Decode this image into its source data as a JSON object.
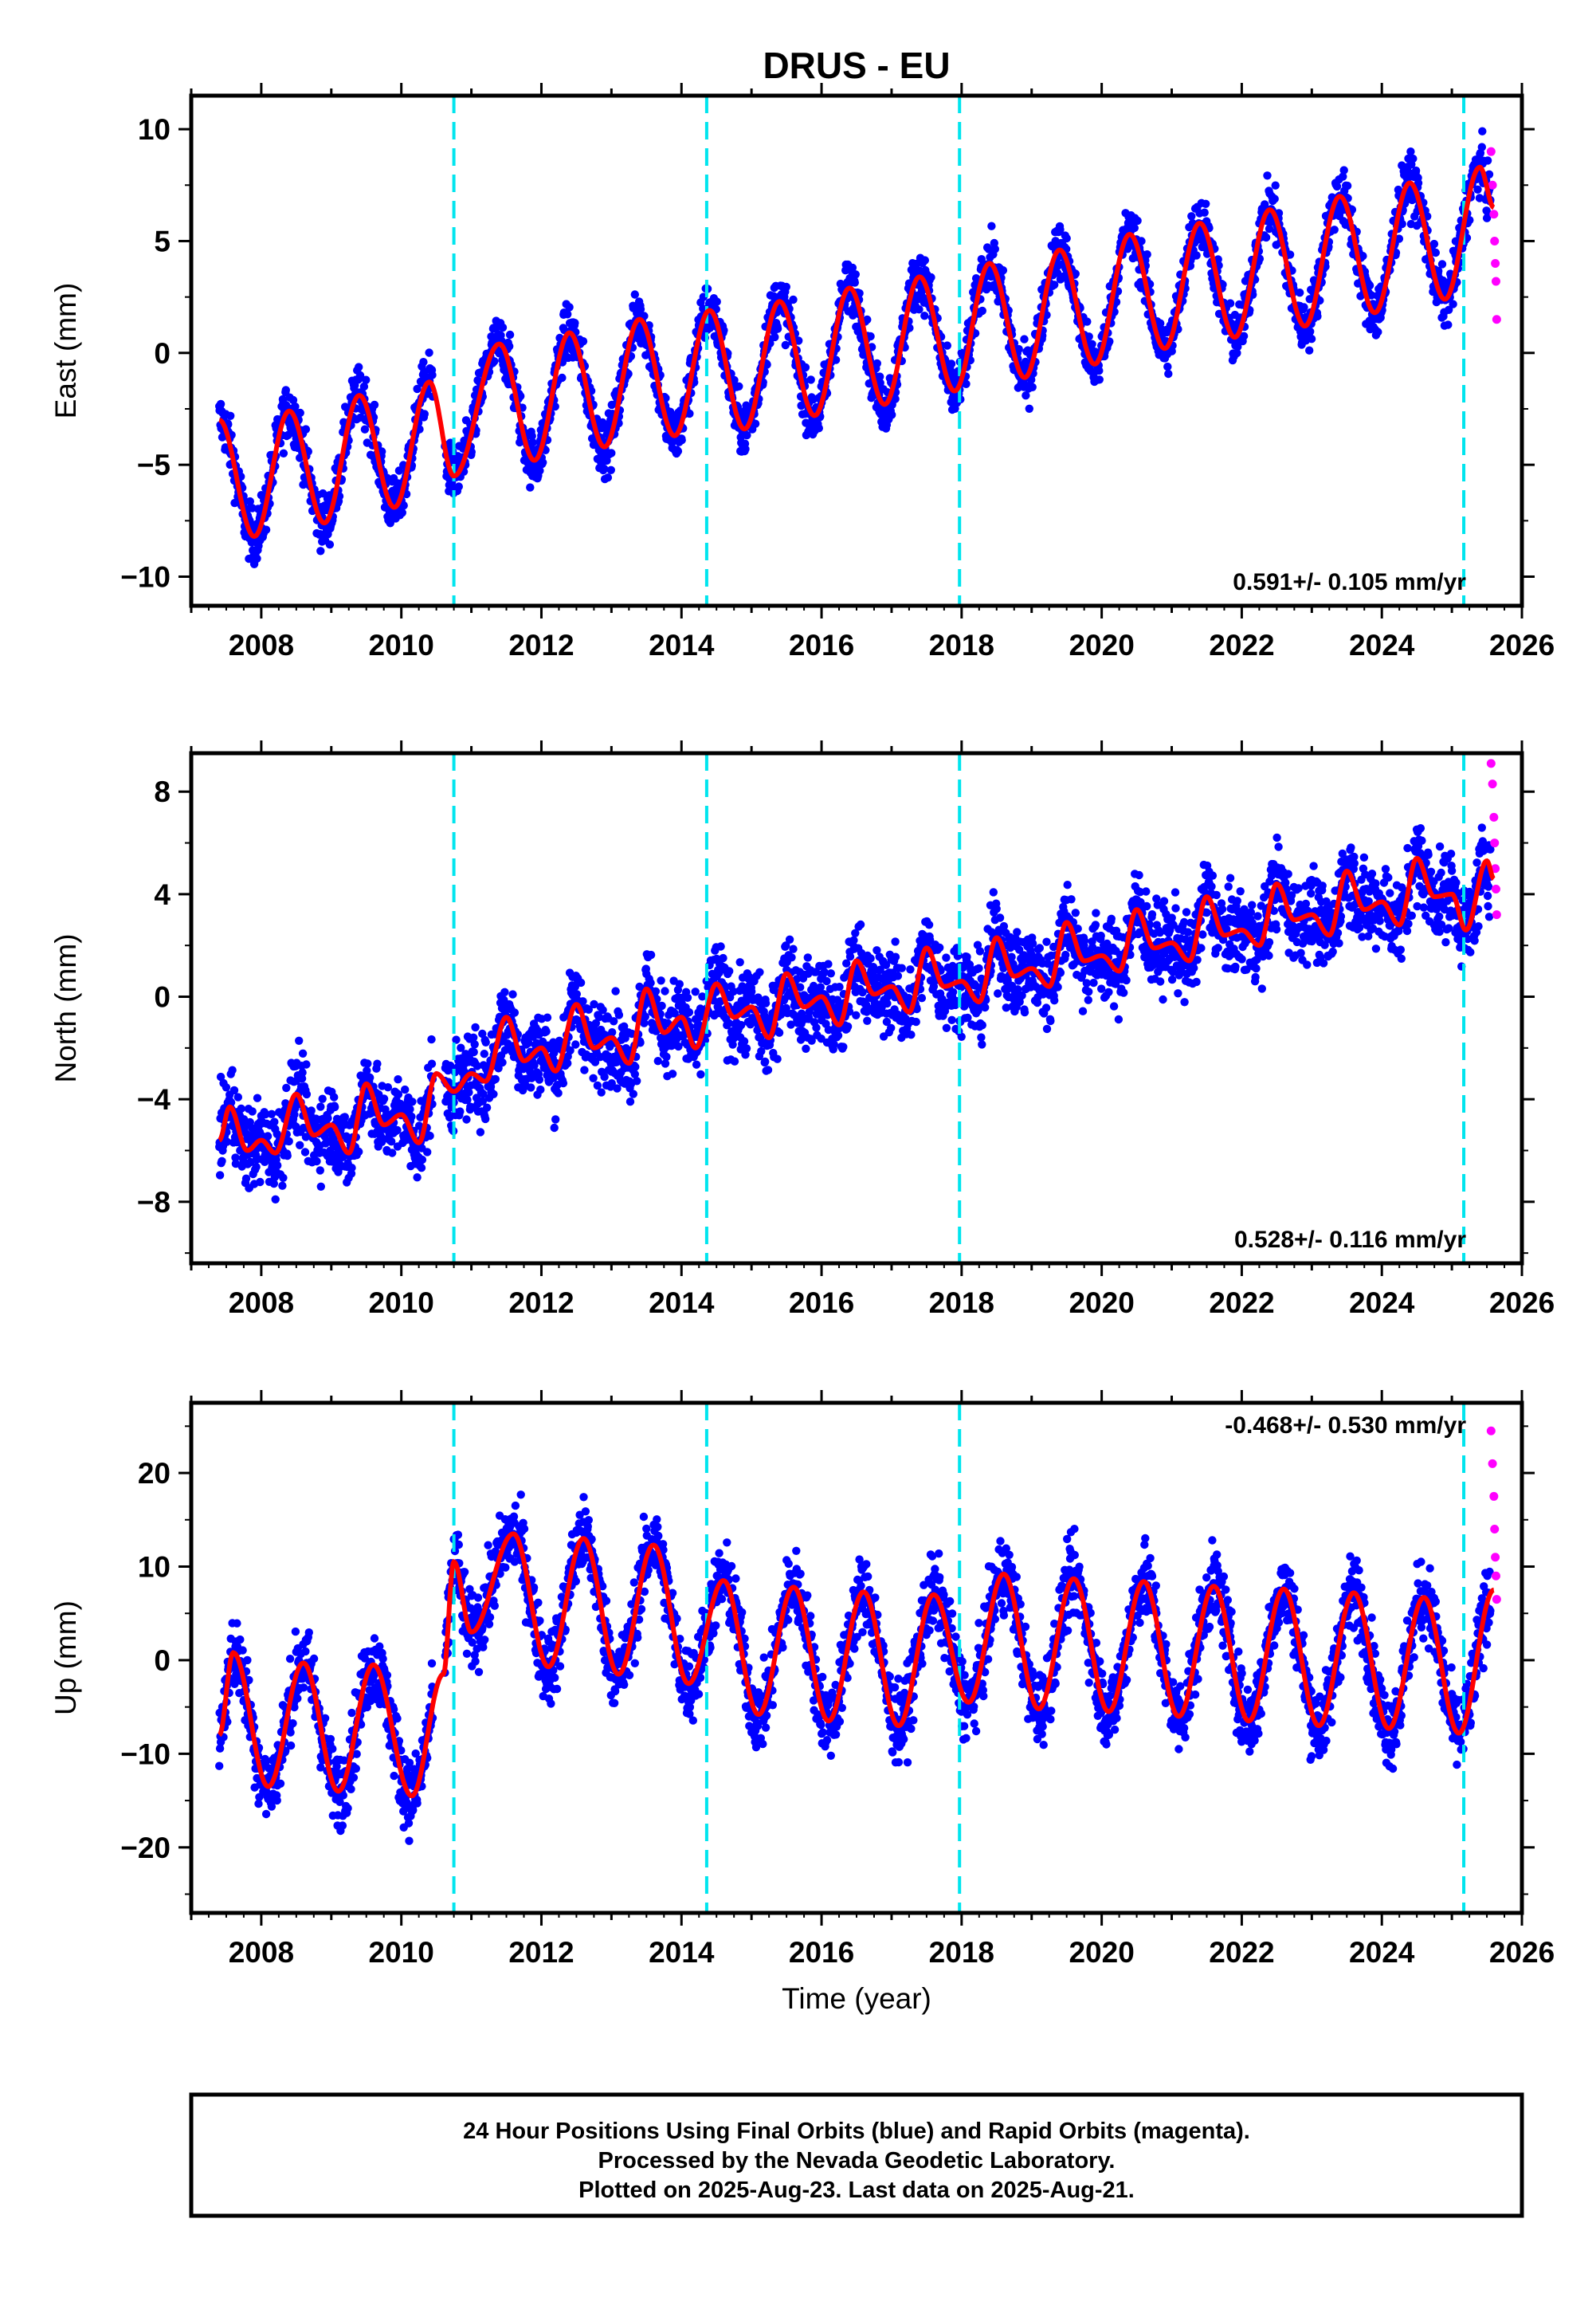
{
  "title": "DRUS - EU",
  "footer": {
    "line1": "24 Hour Positions Using Final Orbits (blue) and Rapid Orbits (magenta).",
    "line2": "Processed by the Nevada Geodetic Laboratory.",
    "line3": "Plotted on 2025-Aug-23. Last data on 2025-Aug-21."
  },
  "colors": {
    "final": "#0000ff",
    "rapid": "#ff00ff",
    "model": "#ff0000",
    "offset": "#00e5ee"
  },
  "chart_data": [
    {
      "type": "scatter",
      "ylabel": "East (mm)",
      "xlabel": "",
      "xlim": [
        2007.0,
        2026.0
      ],
      "ylim": [
        -11.3,
        11.5
      ],
      "xticks": [
        2008,
        2010,
        2012,
        2014,
        2016,
        2018,
        2020,
        2022,
        2024,
        2026
      ],
      "yticks": [
        -10,
        -5,
        0,
        5,
        10
      ],
      "rate_label": "0.591+/- 0.105 mm/yr",
      "offset_epochs": [
        2010.75,
        2014.36,
        2017.97,
        2025.17
      ],
      "model": {
        "x": [
          2007.4,
          2007.9,
          2008.4,
          2008.9,
          2009.4,
          2009.9,
          2010.4,
          2010.75,
          2011.4,
          2011.9,
          2012.4,
          2012.9,
          2013.4,
          2013.9,
          2014.4,
          2014.9,
          2015.4,
          2015.9,
          2016.4,
          2016.9,
          2017.4,
          2017.9,
          2018.4,
          2018.9,
          2019.4,
          2019.9,
          2020.4,
          2020.9,
          2021.4,
          2021.9,
          2022.4,
          2022.9,
          2023.4,
          2023.9,
          2024.4,
          2024.9,
          2025.4,
          2025.6
        ],
        "y": [
          -3.0,
          -8.2,
          -2.6,
          -7.6,
          -1.9,
          -6.9,
          -1.3,
          -5.5,
          0.4,
          -4.8,
          0.9,
          -4.2,
          1.5,
          -3.7,
          1.9,
          -3.4,
          2.3,
          -2.8,
          2.9,
          -2.3,
          3.4,
          -1.7,
          4.0,
          -1.1,
          4.6,
          -0.5,
          5.3,
          0.2,
          5.8,
          0.7,
          6.4,
          1.2,
          7.0,
          1.8,
          7.6,
          2.4,
          8.3,
          6.5
        ]
      },
      "scatter_spread": 1.2,
      "rapid": {
        "x": [
          2025.56,
          2025.58,
          2025.6,
          2025.61,
          2025.62,
          2025.63,
          2025.64
        ],
        "y": [
          9.0,
          7.5,
          6.2,
          5.0,
          4.0,
          3.2,
          1.5
        ]
      }
    },
    {
      "type": "scatter",
      "ylabel": "North (mm)",
      "xlabel": "",
      "xlim": [
        2007.0,
        2026.0
      ],
      "ylim": [
        -10.4,
        9.5
      ],
      "xticks": [
        2008,
        2010,
        2012,
        2014,
        2016,
        2018,
        2020,
        2022,
        2024,
        2026
      ],
      "yticks": [
        -8,
        -4,
        0,
        4,
        8
      ],
      "rate_label": "0.528+/- 0.116 mm/yr",
      "offset_epochs": [
        2010.75,
        2014.36,
        2017.97,
        2025.17
      ],
      "model": {
        "x": [
          2007.4,
          2007.55,
          2007.8,
          2008.0,
          2008.2,
          2008.5,
          2008.75,
          2009.0,
          2009.25,
          2009.5,
          2009.75,
          2010.0,
          2010.25,
          2010.5,
          2010.75,
          2011.0,
          2011.2,
          2011.5,
          2011.75,
          2012.0,
          2012.2,
          2012.5,
          2012.75,
          2013.0,
          2013.25,
          2013.5,
          2013.75,
          2014.0,
          2014.2,
          2014.5,
          2014.75,
          2015.0,
          2015.25,
          2015.5,
          2015.75,
          2016.0,
          2016.25,
          2016.5,
          2016.75,
          2017.0,
          2017.25,
          2017.5,
          2017.75,
          2018.0,
          2018.25,
          2018.5,
          2018.75,
          2019.0,
          2019.25,
          2019.5,
          2019.75,
          2020.0,
          2020.25,
          2020.5,
          2020.75,
          2021.0,
          2021.25,
          2021.5,
          2021.75,
          2022.0,
          2022.25,
          2022.5,
          2022.75,
          2023.0,
          2023.25,
          2023.5,
          2023.75,
          2024.0,
          2024.25,
          2024.5,
          2024.75,
          2025.0,
          2025.2,
          2025.5,
          2025.6
        ],
        "y": [
          -5.6,
          -4.3,
          -6.0,
          -5.6,
          -6.1,
          -3.8,
          -5.4,
          -5.0,
          -6.1,
          -3.4,
          -5.0,
          -4.6,
          -5.7,
          -3.0,
          -3.7,
          -3.0,
          -3.3,
          -0.8,
          -2.5,
          -2.0,
          -2.9,
          -0.3,
          -2.0,
          -1.6,
          -2.6,
          0.3,
          -1.4,
          -0.8,
          -2.0,
          0.5,
          -0.8,
          -0.4,
          -1.6,
          0.9,
          -0.4,
          0.0,
          -1.1,
          1.4,
          0.1,
          0.4,
          -0.6,
          1.9,
          0.4,
          0.6,
          -0.2,
          2.3,
          0.8,
          1.1,
          0.4,
          2.9,
          1.4,
          1.6,
          1.0,
          3.4,
          1.9,
          2.1,
          1.4,
          3.9,
          2.4,
          2.6,
          2.0,
          4.4,
          3.0,
          3.2,
          2.4,
          4.9,
          3.4,
          3.7,
          2.8,
          5.4,
          3.9,
          4.0,
          2.6,
          5.3,
          4.6
        ]
      },
      "scatter_spread": 1.6,
      "rapid": {
        "x": [
          2025.56,
          2025.58,
          2025.6,
          2025.61,
          2025.62,
          2025.63,
          2025.64
        ],
        "y": [
          9.1,
          8.3,
          7.0,
          6.0,
          5.0,
          4.2,
          3.2
        ]
      }
    },
    {
      "type": "scatter",
      "ylabel": "Up (mm)",
      "xlabel": "Time (year)",
      "xlim": [
        2007.0,
        2026.0
      ],
      "ylim": [
        -27.0,
        27.5
      ],
      "xticks": [
        2008,
        2010,
        2012,
        2014,
        2016,
        2018,
        2020,
        2022,
        2024,
        2026
      ],
      "yticks": [
        -20,
        -10,
        0,
        10,
        20
      ],
      "rate_label": "-0.468+/- 0.530 mm/yr",
      "offset_epochs": [
        2010.75,
        2014.36,
        2017.97,
        2025.17
      ],
      "model": {
        "x": [
          2007.4,
          2007.6,
          2008.1,
          2008.6,
          2009.1,
          2009.6,
          2010.15,
          2010.6,
          2010.75,
          2011.0,
          2011.6,
          2012.1,
          2012.6,
          2013.1,
          2013.6,
          2014.1,
          2014.6,
          2015.1,
          2015.6,
          2016.1,
          2016.6,
          2017.1,
          2017.6,
          2018.1,
          2018.6,
          2019.1,
          2019.6,
          2020.1,
          2020.6,
          2021.1,
          2021.6,
          2022.1,
          2022.6,
          2023.1,
          2023.6,
          2024.1,
          2024.6,
          2025.1,
          2025.6
        ],
        "y": [
          -8.0,
          0.8,
          -13.5,
          -0.3,
          -14.0,
          -0.5,
          -14.5,
          -1.5,
          10.5,
          3.0,
          13.5,
          -0.7,
          13.0,
          -1.5,
          12.3,
          -2.5,
          8.5,
          -5.8,
          7.8,
          -6.5,
          7.3,
          -7.0,
          7.0,
          -4.5,
          9.2,
          -5.2,
          8.7,
          -5.5,
          8.4,
          -6.0,
          7.9,
          -6.5,
          7.6,
          -7.0,
          7.2,
          -7.3,
          6.7,
          -7.8,
          7.5
        ]
      },
      "scatter_spread": 4.0,
      "rapid": {
        "x": [
          2025.56,
          2025.58,
          2025.6,
          2025.61,
          2025.62,
          2025.63,
          2025.64
        ],
        "y": [
          24.5,
          21.0,
          17.5,
          14.0,
          11.0,
          9.0,
          6.5
        ]
      }
    }
  ]
}
